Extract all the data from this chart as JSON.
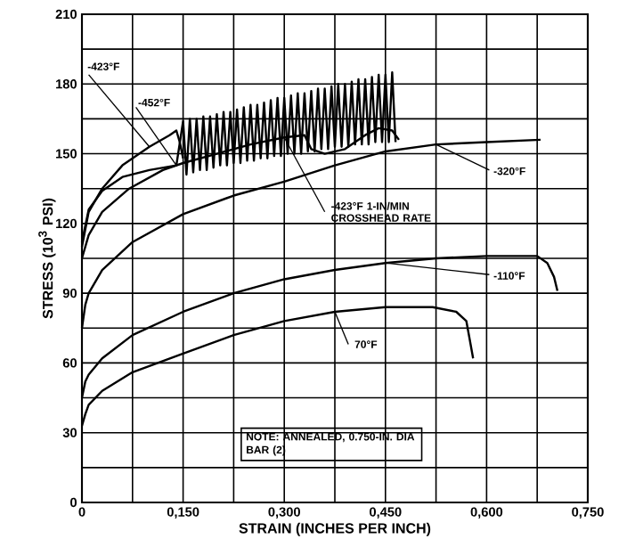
{
  "chart_data": {
    "type": "line",
    "xlabel": "STRAIN (INCHES PER INCH)",
    "ylabel": "STRESS (10$^{3}$ PSI)",
    "xlim": [
      0,
      0.75
    ],
    "ylim": [
      0,
      210
    ],
    "xticks": [
      0,
      {
        "value": 0.075,
        "label": null
      },
      {
        "value": 0.15,
        "label": "0,150"
      },
      {
        "value": 0.225,
        "label": null
      },
      {
        "value": 0.3,
        "label": "0,300"
      },
      {
        "value": 0.375,
        "label": null
      },
      {
        "value": 0.45,
        "label": "0,450"
      },
      {
        "value": 0.525,
        "label": null
      },
      {
        "value": 0.6,
        "label": "0,600"
      },
      {
        "value": 0.675,
        "label": null
      },
      {
        "value": 0.75,
        "label": "0,750"
      }
    ],
    "yticks": [
      0,
      {
        "value": 15,
        "label": null
      },
      30,
      {
        "value": 45,
        "label": null
      },
      60,
      {
        "value": 75,
        "label": null
      },
      90,
      {
        "value": 105,
        "label": null
      },
      120,
      {
        "value": 135,
        "label": null
      },
      150,
      {
        "value": 165,
        "label": null
      },
      180,
      {
        "value": 195,
        "label": null
      },
      210
    ],
    "grid": true,
    "marker": "none",
    "line_style": "solid",
    "series": [
      {
        "color": "#000000",
        "x": [
          0,
          0.01,
          0.03,
          0.06,
          0.1,
          0.13,
          0.14,
          0.145,
          0.15
        ],
        "values": [
          110,
          125,
          135,
          145,
          153,
          158,
          160,
          155,
          148
        ]
      },
      {
        "color": "#000000",
        "x": [
          0,
          0.01,
          0.03,
          0.06,
          0.1,
          0.14,
          0.15,
          0.155,
          0.16,
          0.165,
          0.17,
          0.175,
          0.18,
          0.185,
          0.19,
          0.195,
          0.2,
          0.205,
          0.21,
          0.215,
          0.22,
          0.225,
          0.23,
          0.235,
          0.24,
          0.245,
          0.25,
          0.255,
          0.26,
          0.265,
          0.27,
          0.275,
          0.28,
          0.285,
          0.29,
          0.295,
          0.3,
          0.305,
          0.31,
          0.315,
          0.32,
          0.325,
          0.33,
          0.335,
          0.34,
          0.345,
          0.35,
          0.355,
          0.36,
          0.365,
          0.37,
          0.375,
          0.38,
          0.385,
          0.39,
          0.395,
          0.4,
          0.405,
          0.41,
          0.415,
          0.42,
          0.425,
          0.43,
          0.435,
          0.44,
          0.445,
          0.45,
          0.455,
          0.46,
          0.465
        ],
        "values": [
          112,
          126,
          134,
          140,
          143,
          145,
          164,
          141,
          165,
          142,
          165,
          143,
          166,
          143,
          166,
          144,
          167,
          145,
          168,
          145,
          168,
          146,
          169,
          146,
          170,
          147,
          171,
          147,
          171,
          148,
          172,
          148,
          173,
          149,
          174,
          149,
          174,
          150,
          175,
          150,
          176,
          150,
          176,
          151,
          177,
          151,
          178,
          152,
          178,
          152,
          179,
          153,
          180,
          153,
          180,
          153,
          181,
          154,
          182,
          154,
          182,
          154,
          183,
          155,
          184,
          155,
          184,
          155,
          185,
          155
        ]
      },
      {
        "color": "#000000",
        "x": [
          0,
          0.01,
          0.03,
          0.07,
          0.12,
          0.15,
          0.2,
          0.25,
          0.3,
          0.33,
          0.34,
          0.36,
          0.39,
          0.42,
          0.44,
          0.46,
          0.47
        ],
        "values": [
          105,
          115,
          125,
          135,
          143,
          146,
          150,
          154,
          157,
          158,
          152,
          150,
          152,
          158,
          161,
          160,
          156
        ]
      },
      {
        "color": "#000000",
        "x": [
          0,
          0.005,
          0.01,
          0.03,
          0.075,
          0.15,
          0.225,
          0.3,
          0.375,
          0.45,
          0.525,
          0.6,
          0.68
        ],
        "values": [
          75,
          85,
          90,
          100,
          112,
          124,
          132,
          138,
          145,
          151,
          154,
          155,
          156
        ]
      },
      {
        "color": "#000000",
        "x": [
          0,
          0.005,
          0.01,
          0.03,
          0.075,
          0.15,
          0.225,
          0.3,
          0.375,
          0.45,
          0.525,
          0.6,
          0.675,
          0.69,
          0.7,
          0.705
        ],
        "values": [
          45,
          52,
          55,
          62,
          72,
          82,
          90,
          96,
          100,
          103,
          105,
          106,
          106,
          103,
          97,
          91
        ]
      },
      {
        "color": "#000000",
        "x": [
          0,
          0.005,
          0.01,
          0.03,
          0.075,
          0.15,
          0.225,
          0.3,
          0.375,
          0.45,
          0.52,
          0.555,
          0.57,
          0.575,
          0.58
        ],
        "values": [
          33,
          38,
          42,
          48,
          56,
          64,
          72,
          78,
          82,
          84,
          84,
          82,
          78,
          70,
          62
        ]
      }
    ],
    "annotations": [
      {
        "text": "-423°F",
        "x": 0.1,
        "y": 153
      },
      {
        "text": "-452°F",
        "x": 0.14,
        "y": 145
      },
      {
        "text": "-423°F 1-IN/MIN CROSSHEAD RATE",
        "x": 0.3,
        "y": 157
      },
      {
        "text": "-320°F",
        "x": 0.525,
        "y": 154
      },
      {
        "text": "-110°F",
        "x": 0.45,
        "y": 103
      },
      {
        "text": "70°F",
        "x": 0.375,
        "y": 82
      },
      "NOTE: ANNEALED, 0.750-IN. DIA BAR (2)"
    ]
  }
}
